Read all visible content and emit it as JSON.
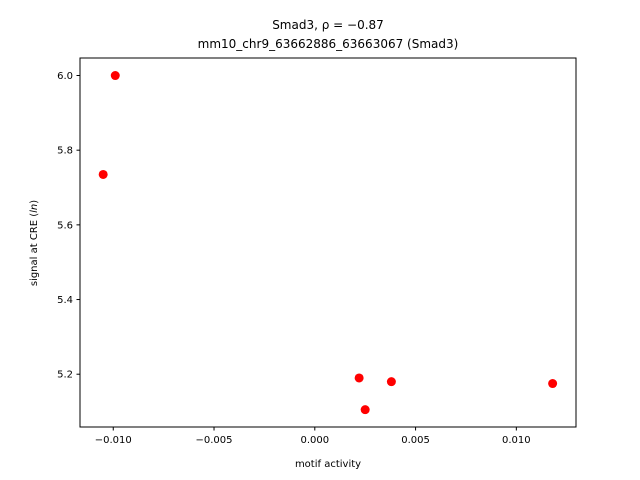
{
  "chart_data": {
    "type": "scatter",
    "title_line1": "Smad3, ρ = −0.87",
    "title_line2": "mm10_chr9_63662886_63663067 (Smad3)",
    "xlabel": "motif activity",
    "ylabel": "signal at CRE (ln)",
    "ylabel_prefix": "signal at CRE (",
    "ylabel_italic": "ln",
    "ylabel_suffix": ")",
    "xlim": [
      -0.01165,
      0.01296
    ],
    "ylim": [
      5.0586,
      6.0469
    ],
    "x_ticks": [
      {
        "value": -0.01,
        "label": "−0.010"
      },
      {
        "value": -0.005,
        "label": "−0.005"
      },
      {
        "value": 0.0,
        "label": "0.000"
      },
      {
        "value": 0.005,
        "label": "0.005"
      },
      {
        "value": 0.01,
        "label": "0.010"
      }
    ],
    "y_ticks": [
      {
        "value": 5.2,
        "label": "5.2"
      },
      {
        "value": 5.4,
        "label": "5.4"
      },
      {
        "value": 5.6,
        "label": "5.6"
      },
      {
        "value": 5.8,
        "label": "5.8"
      },
      {
        "value": 6.0,
        "label": "6.0"
      }
    ],
    "points": [
      {
        "x": -0.0099,
        "y": 6.0
      },
      {
        "x": -0.0105,
        "y": 5.735
      },
      {
        "x": 0.0022,
        "y": 5.19
      },
      {
        "x": 0.0038,
        "y": 5.18
      },
      {
        "x": 0.0025,
        "y": 5.105
      },
      {
        "x": 0.0118,
        "y": 5.175
      }
    ],
    "marker_color": "#ff0000",
    "grid": false
  }
}
